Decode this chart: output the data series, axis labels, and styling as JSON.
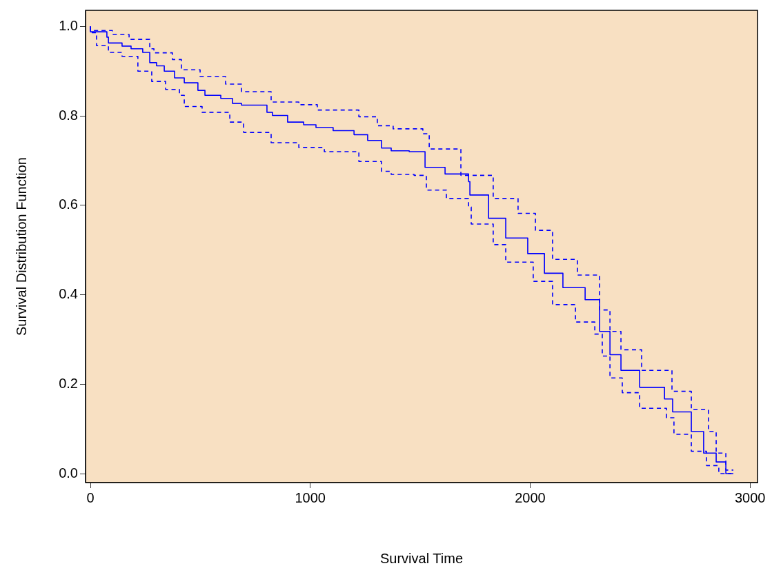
{
  "chart_data": {
    "type": "step",
    "xlabel": "Survival Time",
    "ylabel": "Survival Distribution Function",
    "xlim": [
      -22,
      3034
    ],
    "ylim": [
      -0.02,
      1.036
    ],
    "xticks": [
      0,
      1000,
      2000,
      3000
    ],
    "yticks": [
      {
        "value": 0,
        "label": "0.0"
      },
      {
        "value": 0.2,
        "label": "0.2"
      },
      {
        "value": 0.4,
        "label": "0.4"
      },
      {
        "value": 0.6,
        "label": "0.6"
      },
      {
        "value": 0.8,
        "label": "0.8"
      },
      {
        "value": 1,
        "label": "1.0"
      }
    ],
    "grid": false,
    "legend": false,
    "marker": "none",
    "series": [
      {
        "color": "#0000ff",
        "line_style": "solid",
        "x": [
          0,
          75,
          82,
          144,
          185,
          238,
          270,
          301,
          336,
          383,
          427,
          489,
          521,
          593,
          646,
          687,
          803,
          828,
          897,
          970,
          1026,
          1104,
          1199,
          1261,
          1324,
          1368,
          1450,
          1522,
          1613,
          1720,
          1726,
          1811,
          1889,
          1989,
          2065,
          2149,
          2250,
          2316,
          2363,
          2413,
          2498,
          2611,
          2648,
          2733,
          2789,
          2846,
          2890,
          2924
        ],
        "values": [
          1.0,
          0.988,
          0.976,
          0.963,
          0.956,
          0.95,
          0.942,
          0.919,
          0.912,
          0.9,
          0.885,
          0.874,
          0.857,
          0.846,
          0.839,
          0.828,
          0.824,
          0.808,
          0.801,
          0.786,
          0.78,
          0.774,
          0.767,
          0.758,
          0.745,
          0.728,
          0.722,
          0.72,
          0.685,
          0.67,
          0.653,
          0.623,
          0.571,
          0.527,
          0.492,
          0.448,
          0.416,
          0.389,
          0.318,
          0.266,
          0.231,
          0.193,
          0.167,
          0.138,
          0.094,
          0.046,
          0.026,
          0.0
        ]
      },
      {
        "color": "#0000ff",
        "line_style": "dashed",
        "x": [
          0,
          28,
          82,
          144,
          216,
          279,
          342,
          405,
          427,
          508,
          634,
          697,
          822,
          948,
          1064,
          1221,
          1324,
          1368,
          1472,
          1528,
          1619,
          1720,
          1732,
          1832,
          1889,
          2014,
          2102,
          2206,
          2294,
          2328,
          2363,
          2419,
          2498,
          2620,
          2654,
          2733,
          2802,
          2858,
          2915
        ],
        "values": [
          1.0,
          0.986,
          0.957,
          0.942,
          0.933,
          0.9,
          0.877,
          0.859,
          0.846,
          0.821,
          0.808,
          0.786,
          0.763,
          0.74,
          0.729,
          0.72,
          0.698,
          0.676,
          0.669,
          0.667,
          0.634,
          0.615,
          0.596,
          0.558,
          0.512,
          0.473,
          0.43,
          0.378,
          0.339,
          0.312,
          0.263,
          0.214,
          0.181,
          0.146,
          0.125,
          0.088,
          0.05,
          0.018,
          0.0
        ]
      },
      {
        "color": "#0000ff",
        "line_style": "dashed",
        "x": [
          0,
          100,
          176,
          270,
          289,
          373,
          414,
          499,
          615,
          687,
          822,
          948,
          1032,
          1221,
          1305,
          1377,
          1512,
          1541,
          1685,
          1832,
          1945,
          2024,
          2102,
          2215,
          2316,
          2363,
          2413,
          2507,
          2645,
          2733,
          2811,
          2846,
          2890,
          2924
        ],
        "values": [
          1.0,
          0.991,
          0.982,
          0.971,
          0.95,
          0.941,
          0.926,
          0.903,
          0.888,
          0.871,
          0.854,
          0.831,
          0.825,
          0.813,
          0.798,
          0.778,
          0.771,
          0.76,
          0.726,
          0.667,
          0.615,
          0.582,
          0.544,
          0.479,
          0.444,
          0.366,
          0.318,
          0.277,
          0.231,
          0.184,
          0.143,
          0.094,
          0.046,
          0.008
        ]
      }
    ]
  }
}
